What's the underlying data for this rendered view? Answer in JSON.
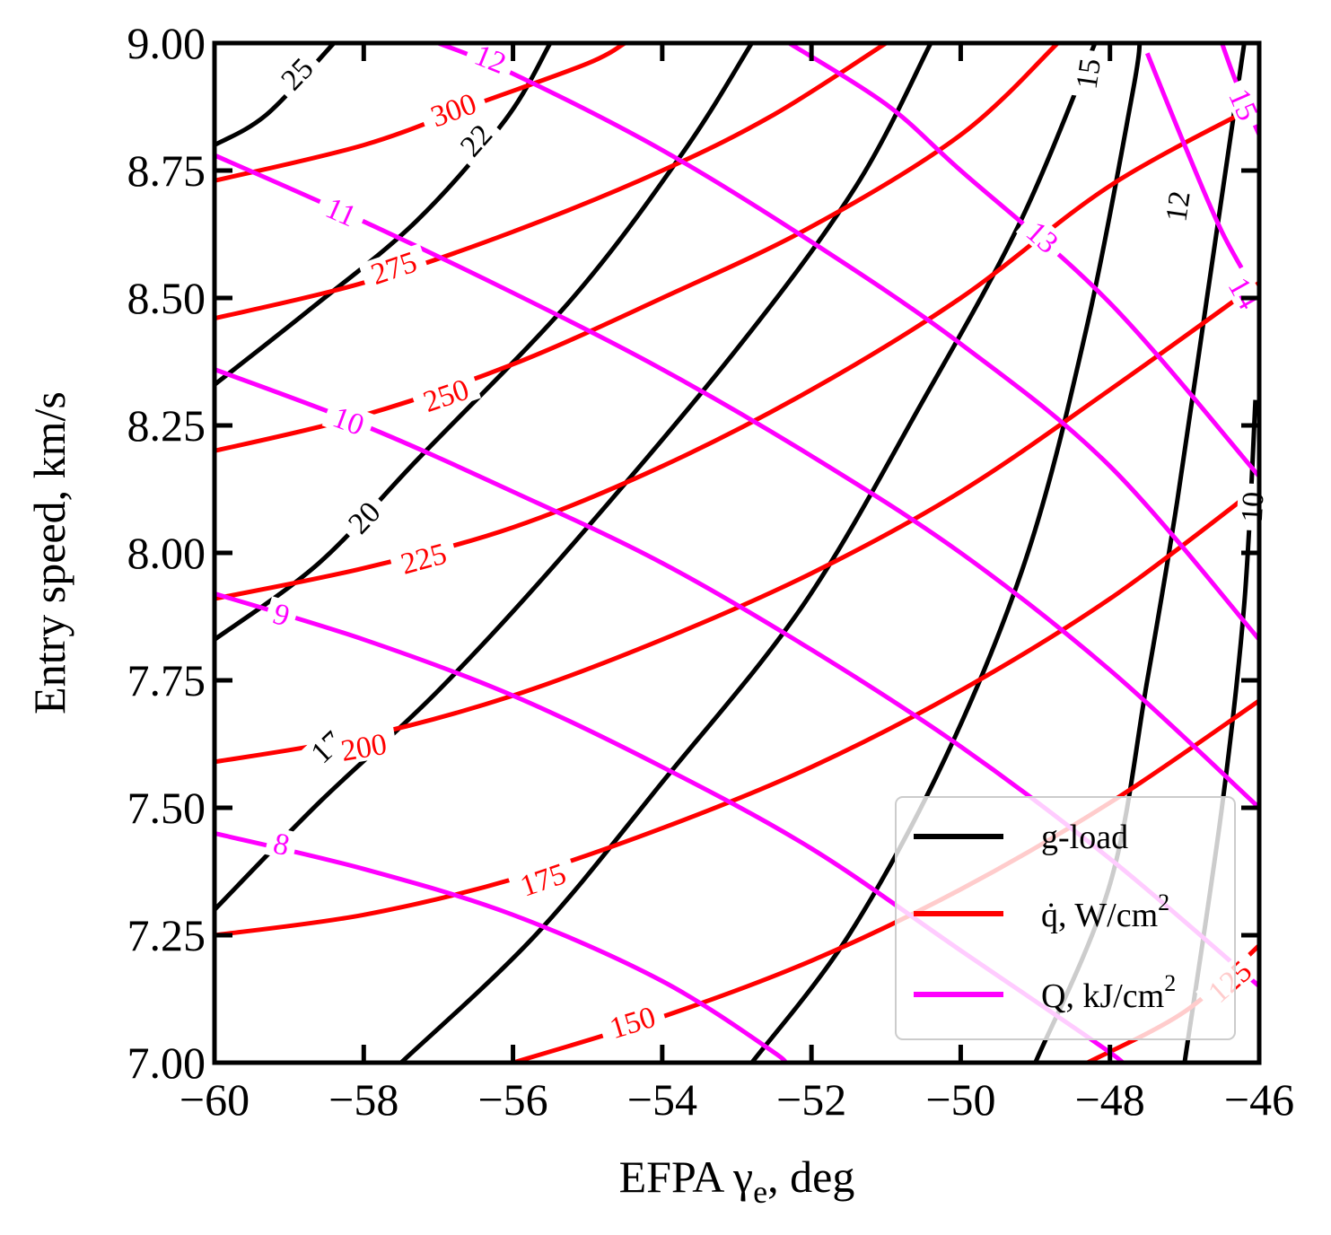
{
  "chart_data": {
    "type": "line",
    "subtype": "contour",
    "xlabel": "EFPA γ",
    "xlabel_sub": "e",
    "xlabel_suffix": ", deg",
    "ylabel": "Entry speed, km/s",
    "xlim": [
      -60,
      -46
    ],
    "ylim": [
      7.0,
      9.0
    ],
    "xticks": [
      -60,
      -58,
      -56,
      -54,
      -52,
      -50,
      -48,
      -46
    ],
    "xtick_labels": [
      "−60",
      "−58",
      "−56",
      "−54",
      "−52",
      "−50",
      "−48",
      "−46"
    ],
    "yticks": [
      7.0,
      7.25,
      7.5,
      7.75,
      8.0,
      8.25,
      8.5,
      8.75,
      9.0
    ],
    "ytick_labels": [
      "7.00",
      "7.25",
      "7.50",
      "7.75",
      "8.00",
      "8.25",
      "8.50",
      "8.75",
      "9.00"
    ],
    "grid": false,
    "legend_position": "bottom-right",
    "legend": [
      {
        "label": "g-load",
        "color": "#000000"
      },
      {
        "label": "q̇, W/cm",
        "sup": "2",
        "color": "#ff0000"
      },
      {
        "label": "Q, kJ/cm",
        "sup": "2",
        "color": "#ff00ff"
      }
    ],
    "series": [
      {
        "group": "g-load",
        "color": "#000000",
        "label": "25",
        "label_at": [
          -58.9,
          8.94
        ],
        "points": [
          [
            -60.0,
            8.8
          ],
          [
            -59.3,
            8.86
          ],
          [
            -58.4,
            9.0
          ]
        ]
      },
      {
        "group": "g-load",
        "color": "#000000",
        "label": "22",
        "label_at": [
          -56.5,
          8.81
        ],
        "points": [
          [
            -60.0,
            8.33
          ],
          [
            -58.7,
            8.48
          ],
          [
            -57.3,
            8.65
          ],
          [
            -56.1,
            8.85
          ],
          [
            -55.5,
            9.0
          ]
        ]
      },
      {
        "group": "g-load",
        "color": "#000000",
        "label": "20",
        "label_at": [
          -58.0,
          8.07
        ],
        "points": [
          [
            -60.0,
            7.83
          ],
          [
            -58.6,
            7.98
          ],
          [
            -57.3,
            8.18
          ],
          [
            -55.2,
            8.5
          ],
          [
            -53.7,
            8.79
          ],
          [
            -52.8,
            9.0
          ]
        ]
      },
      {
        "group": "g-load",
        "color": "#000000",
        "label": "17",
        "label_at": [
          -58.5,
          7.62
        ],
        "points": [
          [
            -60.0,
            7.3
          ],
          [
            -58.6,
            7.51
          ],
          [
            -57.0,
            7.73
          ],
          [
            -55.3,
            8.0
          ],
          [
            -53.0,
            8.4
          ],
          [
            -51.4,
            8.72
          ],
          [
            -50.4,
            9.0
          ]
        ]
      },
      {
        "group": "g-load",
        "color": "#000000",
        "label": "",
        "points": [
          [
            -57.5,
            7.0
          ],
          [
            -55.7,
            7.25
          ],
          [
            -54.0,
            7.55
          ],
          [
            -52.1,
            7.9
          ],
          [
            -50.5,
            8.3
          ],
          [
            -49.2,
            8.65
          ],
          [
            -48.2,
            9.0
          ]
        ]
      },
      {
        "group": "g-load",
        "color": "#000000",
        "label": "15",
        "label_at": [
          -48.3,
          8.94
        ],
        "points": [
          [
            -52.8,
            7.0
          ],
          [
            -51.5,
            7.25
          ],
          [
            -50.2,
            7.6
          ],
          [
            -49.1,
            8.0
          ],
          [
            -48.3,
            8.45
          ],
          [
            -47.7,
            8.9
          ],
          [
            -47.6,
            9.0
          ]
        ]
      },
      {
        "group": "g-load",
        "color": "#000000",
        "label": "12",
        "label_at": [
          -47.1,
          8.68
        ],
        "points": [
          [
            -49.0,
            7.0
          ],
          [
            -48.0,
            7.35
          ],
          [
            -47.5,
            7.75
          ],
          [
            -47.1,
            8.1
          ],
          [
            -46.7,
            8.5
          ],
          [
            -46.3,
            8.9
          ],
          [
            -46.2,
            9.0
          ]
        ]
      },
      {
        "group": "g-load",
        "color": "#000000",
        "label": "10",
        "label_at": [
          -46.1,
          8.09
        ],
        "points": [
          [
            -47.0,
            7.0
          ],
          [
            -46.5,
            7.5
          ],
          [
            -46.2,
            7.9
          ],
          [
            -46.05,
            8.3
          ]
        ]
      },
      {
        "group": "q",
        "color": "#ff0000",
        "label": "300",
        "label_at": [
          -56.8,
          8.87
        ],
        "points": [
          [
            -60.0,
            8.73
          ],
          [
            -58.0,
            8.8
          ],
          [
            -56.5,
            8.88
          ],
          [
            -55.0,
            8.96
          ],
          [
            -54.5,
            9.0
          ]
        ]
      },
      {
        "group": "q",
        "color": "#ff0000",
        "label": "275",
        "label_at": [
          -57.6,
          8.56
        ],
        "points": [
          [
            -60.0,
            8.46
          ],
          [
            -58.0,
            8.53
          ],
          [
            -56.0,
            8.63
          ],
          [
            -54.0,
            8.75
          ],
          [
            -52.5,
            8.86
          ],
          [
            -51.0,
            9.0
          ]
        ]
      },
      {
        "group": "q",
        "color": "#ff0000",
        "label": "250",
        "label_at": [
          -56.9,
          8.31
        ],
        "points": [
          [
            -60.0,
            8.2
          ],
          [
            -58.0,
            8.27
          ],
          [
            -56.0,
            8.37
          ],
          [
            -54.0,
            8.5
          ],
          [
            -52.0,
            8.64
          ],
          [
            -50.0,
            8.82
          ],
          [
            -48.7,
            9.0
          ]
        ]
      },
      {
        "group": "q",
        "color": "#ff0000",
        "label": "225",
        "label_at": [
          -57.2,
          7.99
        ],
        "points": [
          [
            -60.0,
            7.91
          ],
          [
            -58.0,
            7.97
          ],
          [
            -56.0,
            8.05
          ],
          [
            -54.0,
            8.17
          ],
          [
            -52.0,
            8.32
          ],
          [
            -50.0,
            8.5
          ],
          [
            -48.0,
            8.72
          ],
          [
            -46.0,
            8.88
          ]
        ]
      },
      {
        "group": "q",
        "color": "#ff0000",
        "label": "200",
        "label_at": [
          -58.0,
          7.62
        ],
        "points": [
          [
            -60.0,
            7.59
          ],
          [
            -58.0,
            7.64
          ],
          [
            -56.0,
            7.72
          ],
          [
            -54.0,
            7.83
          ],
          [
            -52.0,
            7.96
          ],
          [
            -50.0,
            8.12
          ],
          [
            -48.0,
            8.32
          ],
          [
            -46.0,
            8.53
          ]
        ]
      },
      {
        "group": "q",
        "color": "#ff0000",
        "label": "175",
        "label_at": [
          -55.6,
          7.36
        ],
        "points": [
          [
            -60.0,
            7.25
          ],
          [
            -58.0,
            7.29
          ],
          [
            -56.0,
            7.36
          ],
          [
            -54.0,
            7.46
          ],
          [
            -52.0,
            7.58
          ],
          [
            -50.0,
            7.73
          ],
          [
            -48.0,
            7.91
          ],
          [
            -46.0,
            8.13
          ]
        ]
      },
      {
        "group": "q",
        "color": "#ff0000",
        "label": "150",
        "label_at": [
          -54.4,
          7.08
        ],
        "points": [
          [
            -56.0,
            7.0
          ],
          [
            -54.0,
            7.09
          ],
          [
            -52.0,
            7.2
          ],
          [
            -50.0,
            7.34
          ],
          [
            -48.0,
            7.51
          ],
          [
            -46.0,
            7.71
          ]
        ]
      },
      {
        "group": "q",
        "color": "#ff0000",
        "label": "125",
        "label_at": [
          -46.4,
          7.16
        ],
        "points": [
          [
            -48.3,
            7.0
          ],
          [
            -47.0,
            7.1
          ],
          [
            -46.0,
            7.23
          ]
        ]
      },
      {
        "group": "Q",
        "color": "#ff00ff",
        "label": "8",
        "label_at": [
          -59.1,
          7.43
        ],
        "points": [
          [
            -60.0,
            7.45
          ],
          [
            -58.0,
            7.38
          ],
          [
            -56.0,
            7.29
          ],
          [
            -54.0,
            7.16
          ],
          [
            -52.5,
            7.02
          ],
          [
            -52.4,
            7.0
          ]
        ]
      },
      {
        "group": "Q",
        "color": "#ff00ff",
        "label": "9",
        "label_at": [
          -59.1,
          7.88
        ],
        "points": [
          [
            -60.0,
            7.92
          ],
          [
            -58.0,
            7.83
          ],
          [
            -56.0,
            7.72
          ],
          [
            -54.0,
            7.58
          ],
          [
            -52.0,
            7.42
          ],
          [
            -50.0,
            7.22
          ],
          [
            -48.0,
            7.02
          ],
          [
            -47.9,
            7.0
          ]
        ]
      },
      {
        "group": "Q",
        "color": "#ff00ff",
        "label": "10",
        "label_at": [
          -58.2,
          8.26
        ],
        "points": [
          [
            -60.0,
            8.36
          ],
          [
            -58.0,
            8.25
          ],
          [
            -56.0,
            8.12
          ],
          [
            -54.0,
            7.98
          ],
          [
            -52.0,
            7.81
          ],
          [
            -50.0,
            7.62
          ],
          [
            -48.0,
            7.4
          ],
          [
            -46.0,
            7.15
          ]
        ]
      },
      {
        "group": "Q",
        "color": "#ff00ff",
        "label": "11",
        "label_at": [
          -58.3,
          8.67
        ],
        "points": [
          [
            -60.0,
            8.78
          ],
          [
            -58.0,
            8.65
          ],
          [
            -56.0,
            8.51
          ],
          [
            -54.0,
            8.36
          ],
          [
            -52.0,
            8.19
          ],
          [
            -50.0,
            8.0
          ],
          [
            -48.0,
            7.77
          ],
          [
            -46.0,
            7.5
          ]
        ]
      },
      {
        "group": "Q",
        "color": "#ff00ff",
        "label": "12",
        "label_at": [
          -56.3,
          8.97
        ],
        "points": [
          [
            -57.0,
            9.0
          ],
          [
            -56.0,
            8.94
          ],
          [
            -54.0,
            8.79
          ],
          [
            -52.0,
            8.61
          ],
          [
            -50.0,
            8.41
          ],
          [
            -48.0,
            8.17
          ],
          [
            -46.0,
            7.83
          ]
        ]
      },
      {
        "group": "Q",
        "color": "#ff00ff",
        "label": "13",
        "label_at": [
          -48.9,
          8.62
        ],
        "points": [
          [
            -52.3,
            9.0
          ],
          [
            -51.0,
            8.88
          ],
          [
            -50.0,
            8.75
          ],
          [
            -48.0,
            8.49
          ],
          [
            -46.0,
            8.15
          ]
        ]
      },
      {
        "group": "Q",
        "color": "#ff00ff",
        "label": "14",
        "label_at": [
          -46.2,
          8.51
        ],
        "points": [
          [
            -47.5,
            8.98
          ],
          [
            -47.0,
            8.8
          ],
          [
            -46.5,
            8.63
          ],
          [
            -46.0,
            8.5
          ]
        ]
      },
      {
        "group": "Q",
        "color": "#ff00ff",
        "label": "15",
        "label_at": [
          -46.2,
          8.88
        ],
        "points": [
          [
            -46.5,
            9.0
          ],
          [
            -46.3,
            8.92
          ],
          [
            -46.0,
            8.82
          ]
        ]
      }
    ]
  }
}
